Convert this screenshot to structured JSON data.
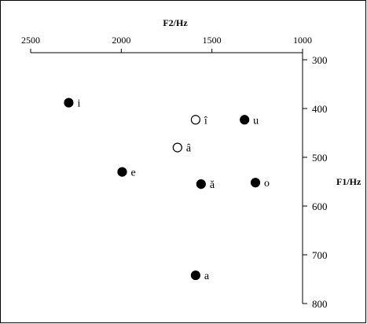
{
  "chart_data": {
    "type": "scatter",
    "title": "",
    "xlabel": "F2/Hz",
    "ylabel": "F1/Hz",
    "x_axis_position": "top",
    "y_axis_position": "right",
    "x_reversed": true,
    "y_reversed": true,
    "xlim": [
      2500,
      1000
    ],
    "ylim": [
      300,
      800
    ],
    "x_ticks": [
      2500,
      2000,
      1500,
      1000
    ],
    "y_ticks": [
      300,
      400,
      500,
      600,
      700,
      800
    ],
    "grid": false,
    "legend": "none",
    "points": [
      {
        "label": "i",
        "x": 2290,
        "y": 388,
        "filled": true
      },
      {
        "label": "î",
        "x": 1590,
        "y": 423,
        "filled": false
      },
      {
        "label": "u",
        "x": 1320,
        "y": 423,
        "filled": true
      },
      {
        "label": "â",
        "x": 1690,
        "y": 480,
        "filled": false
      },
      {
        "label": "e",
        "x": 1995,
        "y": 530,
        "filled": true
      },
      {
        "label": "ă",
        "x": 1560,
        "y": 555,
        "filled": true
      },
      {
        "label": "o",
        "x": 1260,
        "y": 552,
        "filled": true
      },
      {
        "label": "a",
        "x": 1590,
        "y": 742,
        "filled": true
      }
    ]
  }
}
